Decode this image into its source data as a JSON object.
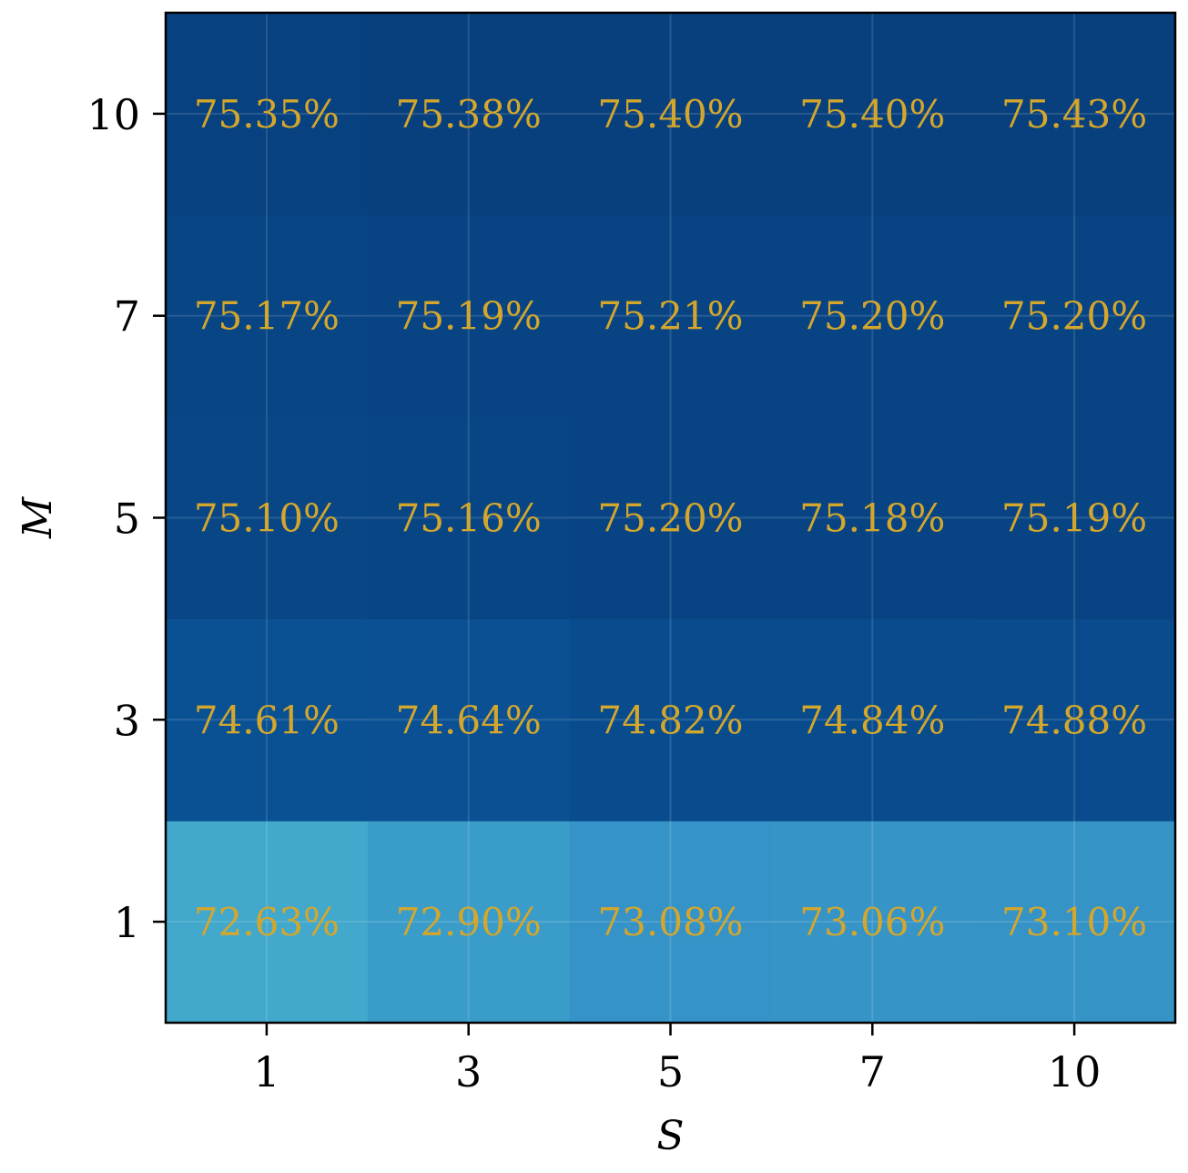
{
  "chart_data": {
    "type": "heatmap",
    "xlabel": "S",
    "ylabel": "M",
    "x_categories": [
      "1",
      "3",
      "5",
      "7",
      "10"
    ],
    "y_categories": [
      "1",
      "3",
      "5",
      "7",
      "10"
    ],
    "values": [
      [
        72.63,
        72.9,
        73.08,
        73.06,
        73.1
      ],
      [
        74.61,
        74.64,
        74.82,
        74.84,
        74.88
      ],
      [
        75.1,
        75.16,
        75.2,
        75.18,
        75.19
      ],
      [
        75.17,
        75.19,
        75.21,
        75.2,
        75.2
      ],
      [
        75.35,
        75.38,
        75.4,
        75.4,
        75.43
      ]
    ],
    "labels": [
      [
        "72.63%",
        "72.90%",
        "73.08%",
        "73.06%",
        "73.10%"
      ],
      [
        "74.61%",
        "74.64%",
        "74.82%",
        "74.84%",
        "74.88%"
      ],
      [
        "75.10%",
        "75.16%",
        "75.20%",
        "75.18%",
        "75.19%"
      ],
      [
        "75.17%",
        "75.19%",
        "75.21%",
        "75.20%",
        "75.20%"
      ],
      [
        "75.35%",
        "75.38%",
        "75.40%",
        "75.40%",
        "75.43%"
      ]
    ],
    "colormap": "blue sequential (light = low, dark = high)",
    "annotation_color": "#d4a72c",
    "grid": true
  }
}
